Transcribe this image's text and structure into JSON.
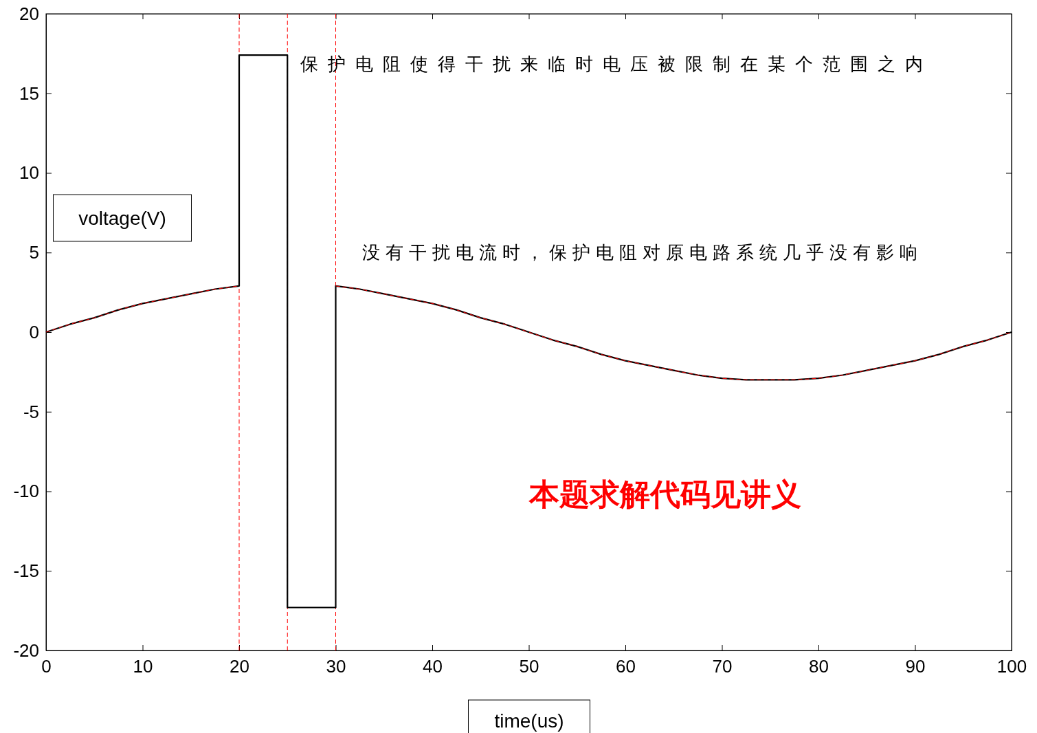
{
  "chart_data": {
    "type": "line",
    "xlabel": "time(us)",
    "ylabel": "voltage(V)",
    "xlim": [
      0,
      100
    ],
    "ylim": [
      -20,
      20
    ],
    "xticks": [
      0,
      10,
      20,
      30,
      40,
      50,
      60,
      70,
      80,
      90,
      100
    ],
    "yticks": [
      -20,
      -15,
      -10,
      -5,
      0,
      5,
      10,
      15,
      20
    ],
    "grid": false,
    "series": [
      {
        "color": "#000000",
        "line_style": "solid",
        "x": [
          0,
          2.5,
          5,
          7.5,
          10,
          12.5,
          15,
          17.5,
          20,
          20,
          25,
          25,
          30,
          30,
          32.5,
          35,
          37.5,
          40,
          42.5,
          45,
          47.5,
          50,
          52.5,
          55,
          57.5,
          60,
          62.5,
          65,
          67.5,
          70,
          72.5,
          75,
          77.5,
          80,
          82.5,
          85,
          87.5,
          90,
          92.5,
          95,
          97.5,
          100
        ],
        "values": [
          0,
          0.5,
          0.9,
          1.4,
          1.8,
          2.1,
          2.4,
          2.7,
          2.9,
          17.4,
          17.4,
          -17.3,
          -17.3,
          2.9,
          2.7,
          2.4,
          2.1,
          1.8,
          1.4,
          0.9,
          0.5,
          0,
          -0.5,
          -0.9,
          -1.4,
          -1.8,
          -2.1,
          -2.4,
          -2.7,
          -2.9,
          -3,
          -3,
          -3,
          -2.9,
          -2.7,
          -2.4,
          -2.1,
          -1.8,
          -1.4,
          -0.9,
          -0.5,
          0
        ]
      },
      {
        "color": "#ff0000",
        "line_style": "dashed",
        "x": [
          0,
          2.5,
          5,
          7.5,
          10,
          12.5,
          15,
          17.5,
          20,
          25,
          30,
          32.5,
          35,
          37.5,
          40,
          42.5,
          45,
          47.5,
          50,
          52.5,
          55,
          57.5,
          60,
          62.5,
          65,
          67.5,
          70,
          72.5,
          75,
          77.5,
          80,
          82.5,
          85,
          87.5,
          90,
          92.5,
          95,
          97.5,
          100
        ],
        "values": [
          0,
          0.5,
          0.9,
          1.4,
          1.8,
          2.1,
          2.4,
          2.7,
          2.9,
          null,
          2.9,
          2.7,
          2.4,
          2.1,
          1.8,
          1.4,
          0.9,
          0.5,
          0,
          -0.5,
          -0.9,
          -1.4,
          -1.8,
          -2.1,
          -2.4,
          -2.7,
          -2.9,
          -3,
          -3,
          -3,
          -2.9,
          -2.7,
          -2.4,
          -2.1,
          -1.8,
          -1.4,
          -0.9,
          -0.5,
          0
        ]
      }
    ],
    "ref_lines": [
      {
        "axis": "x",
        "value": 20,
        "color": "#ff0000",
        "line_style": "dashed"
      },
      {
        "axis": "x",
        "value": 25,
        "color": "#ff0000",
        "line_style": "dashed"
      },
      {
        "axis": "x",
        "value": 30,
        "color": "#ff0000",
        "line_style": "dashed"
      }
    ],
    "annotations": [
      "保护电阻使得干扰来临时电压被限制在某个范围之内",
      "没有干扰电流时，保护电阻对原电路系统几乎没有影响",
      "本题求解代码见讲义"
    ]
  }
}
